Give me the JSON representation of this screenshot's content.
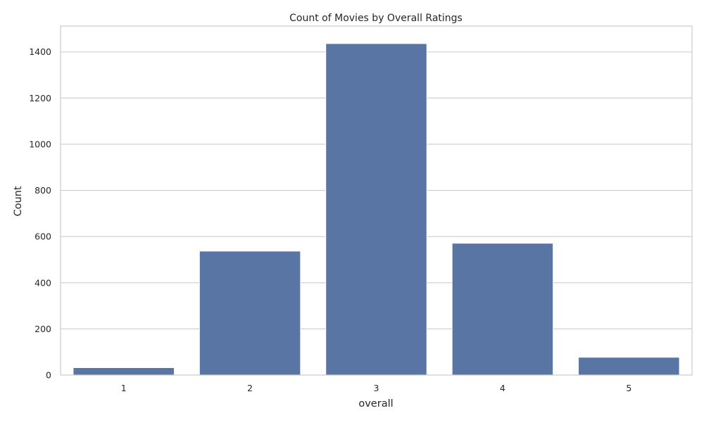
{
  "chart_data": {
    "type": "bar",
    "title": "Count of Movies by Overall Ratings",
    "xlabel": "overall",
    "ylabel": "Count",
    "categories": [
      "1",
      "2",
      "3",
      "4",
      "5"
    ],
    "values": [
      32,
      537,
      1436,
      571,
      77
    ],
    "ylim": [
      0,
      1512
    ],
    "yticks": [
      0,
      200,
      400,
      600,
      800,
      1000,
      1200,
      1400
    ],
    "grid": true,
    "legend": "none",
    "bar_color": "#5975a4",
    "grid_color": "#cccccc",
    "spine_color": "#cccccc"
  }
}
